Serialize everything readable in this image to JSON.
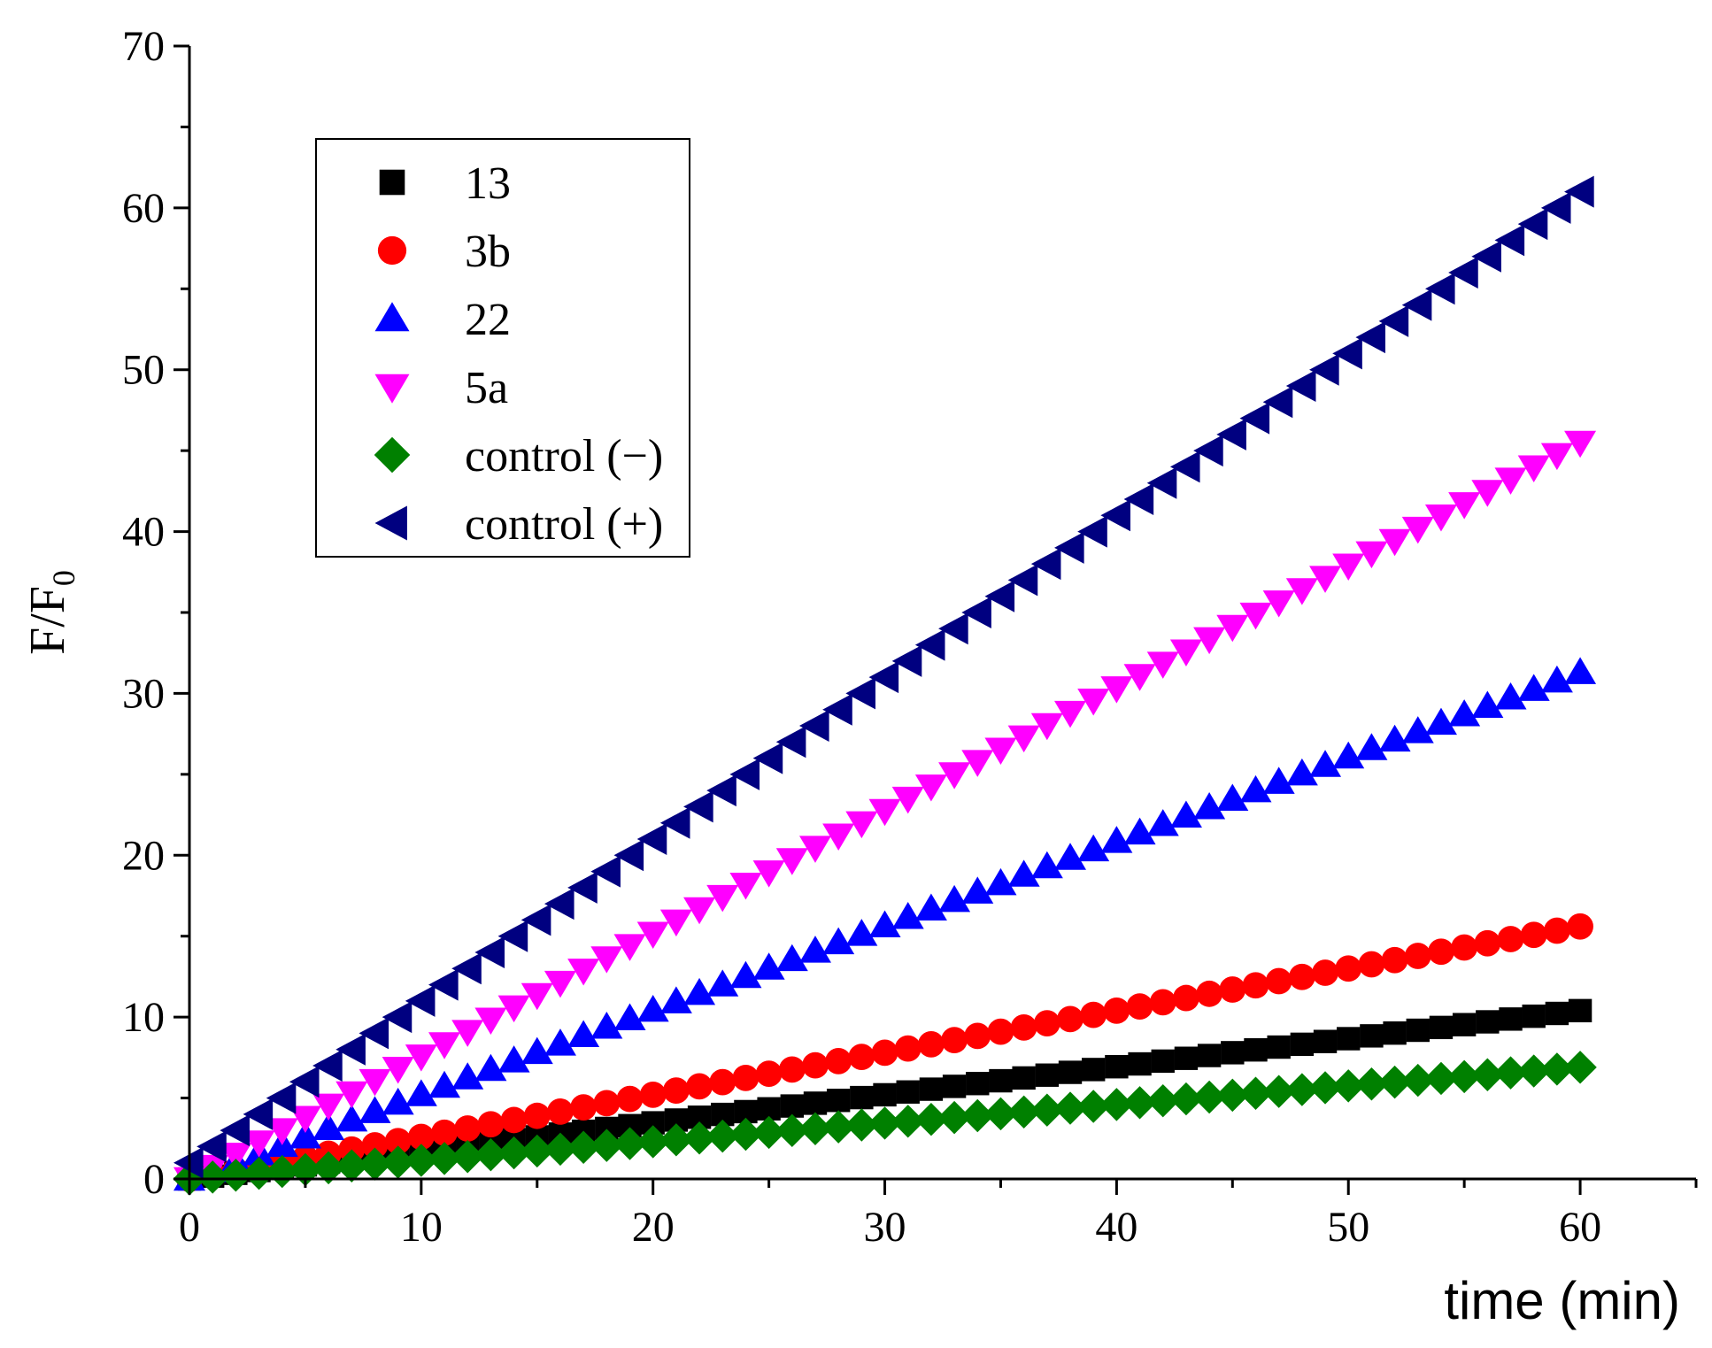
{
  "chart_data": {
    "type": "scatter",
    "title": "",
    "xlabel": "time (min)",
    "ylabel_main": "F/F",
    "ylabel_sub": "0",
    "xlim": [
      0,
      65
    ],
    "ylim": [
      0,
      70
    ],
    "x_ticks": [
      "0",
      "10",
      "20",
      "30",
      "40",
      "50",
      "60"
    ],
    "y_ticks": [
      "0",
      "10",
      "20",
      "30",
      "40",
      "50",
      "60",
      "70"
    ],
    "grid": false,
    "legend_position": "top-left",
    "series": [
      {
        "name": "13",
        "marker": "square",
        "color": "#000000",
        "x_start": 0,
        "x_end": 60,
        "x_step": 1,
        "y_start": 0.0,
        "y_end": 10.4
      },
      {
        "name": "3b",
        "marker": "circle",
        "color": "#ff0000",
        "x_start": 0,
        "x_end": 60,
        "x_step": 1,
        "y_start": 0.0,
        "y_end": 15.6
      },
      {
        "name": "22",
        "marker": "triangle-up",
        "color": "#0000ff",
        "x_start": 0,
        "x_end": 60,
        "x_step": 1,
        "y_start": 0.0,
        "y_end": 31.3
      },
      {
        "name": "5a",
        "marker": "triangle-down",
        "color": "#ff00ff",
        "x_start": 0,
        "x_end": 60,
        "x_step": 1,
        "y_start": 0.0,
        "y_end": 45.5
      },
      {
        "name": "control (−)",
        "marker": "diamond",
        "color": "#008000",
        "x_start": 0,
        "x_end": 60,
        "x_step": 1,
        "y_start": 0.0,
        "y_end": 6.9
      },
      {
        "name": "control (+)",
        "marker": "triangle-left",
        "color": "#000080",
        "x_start": 0,
        "x_end": 60,
        "x_step": 1,
        "y_start": 1.0,
        "y_end": 61.0
      }
    ]
  }
}
